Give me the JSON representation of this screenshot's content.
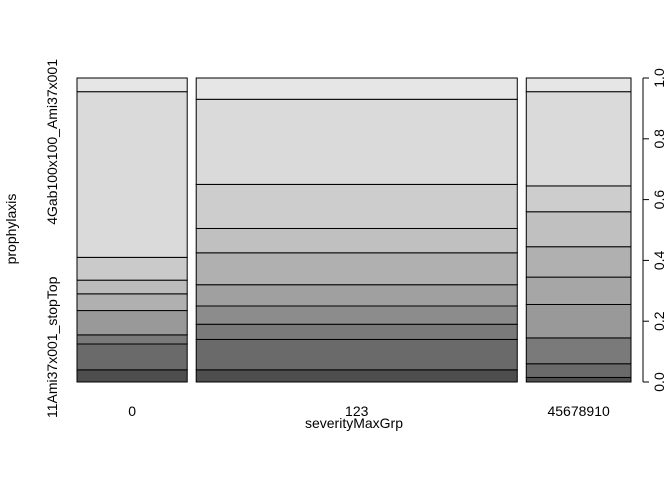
{
  "chart_data": {
    "type": "spineplot",
    "xlabel": "severityMaxGrp",
    "ylabel": "prophylaxis",
    "categories": [
      "0",
      "123",
      "45678910"
    ],
    "column_widths": [
      0.2056,
      0.599,
      0.1954
    ],
    "y_tick_labels_left": [
      "11Ami37x001_stopTop",
      "4Gab100x100_Ami37x001"
    ],
    "y_axis_right": {
      "ticks": [
        0.0,
        0.2,
        0.4,
        0.6,
        0.8,
        1.0
      ],
      "labels": [
        "0.0",
        "0.2",
        "0.4",
        "0.6",
        "0.8",
        "1.0"
      ],
      "ylim": [
        0,
        1
      ]
    },
    "cumulative_boundaries": [
      [
        0.04,
        0.125,
        0.155,
        0.235,
        0.29,
        0.335,
        0.41,
        0.955,
        1.0
      ],
      [
        0.04,
        0.14,
        0.19,
        0.25,
        0.32,
        0.425,
        0.505,
        0.65,
        0.93,
        1.0
      ],
      [
        0.015,
        0.06,
        0.145,
        0.255,
        0.345,
        0.445,
        0.56,
        0.645,
        0.955,
        1.0
      ]
    ],
    "segment_grays": [
      [
        "#4d4d4d",
        "#6a6a6a",
        "#7a7a7a",
        "#999999",
        "#b0b0b0",
        "#bcbcbc",
        "#cacaca",
        "#dadada",
        "#e6e6e6"
      ],
      [
        "#4d4d4d",
        "#6a6a6a",
        "#7a7a7a",
        "#8c8c8c",
        "#a0a0a0",
        "#b0b0b0",
        "#c0c0c0",
        "#cdcdcd",
        "#dadada",
        "#e6e6e6"
      ],
      [
        "#4d4d4d",
        "#6a6a6a",
        "#7a7a7a",
        "#999999",
        "#a6a6a6",
        "#b0b0b0",
        "#c0c0c0",
        "#cdcdcd",
        "#dadada",
        "#e6e6e6"
      ]
    ]
  }
}
